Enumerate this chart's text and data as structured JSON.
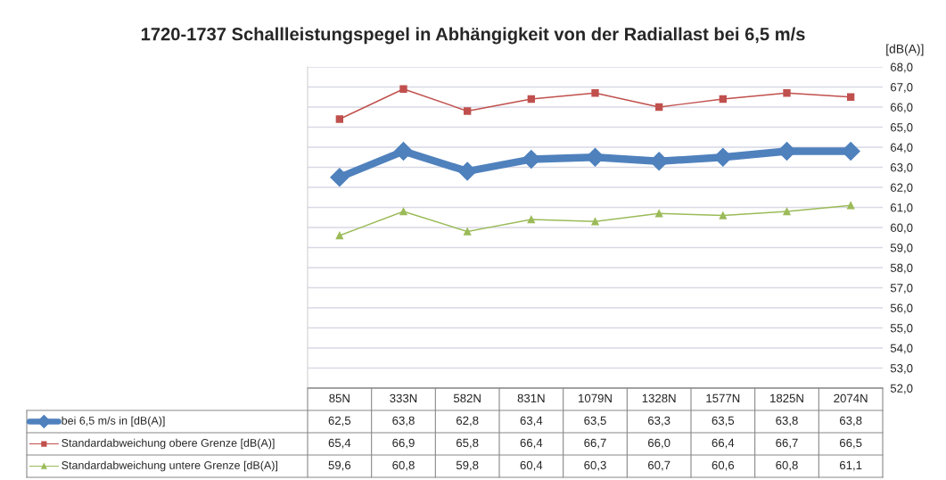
{
  "chart_data": {
    "type": "line",
    "title": "1720-1737 Schallleistungspegel in Abhängigkeit von der Radiallast bei 6,5 m/s",
    "ylabel": "[dB(A)]",
    "categories": [
      "85N",
      "333N",
      "582N",
      "831N",
      "1079N",
      "1328N",
      "1577N",
      "1825N",
      "2074N"
    ],
    "series": [
      {
        "name": "bei 6,5 m/s in [dB(A)]",
        "color": "#4f81bd",
        "marker": "diamond",
        "values": [
          62.5,
          63.8,
          62.8,
          63.4,
          63.5,
          63.3,
          63.5,
          63.8,
          63.8
        ],
        "value_labels": [
          "62,5",
          "63,8",
          "62,8",
          "63,4",
          "63,5",
          "63,3",
          "63,5",
          "63,8",
          "63,8"
        ]
      },
      {
        "name": "Standardabweichung obere Grenze [dB(A)]",
        "color": "#c0504d",
        "marker": "square",
        "values": [
          65.4,
          66.9,
          65.8,
          66.4,
          66.7,
          66.0,
          66.4,
          66.7,
          66.5
        ],
        "value_labels": [
          "65,4",
          "66,9",
          "65,8",
          "66,4",
          "66,7",
          "66,0",
          "66,4",
          "66,7",
          "66,5"
        ]
      },
      {
        "name": "Standardabweichung untere Grenze [dB(A)]",
        "color": "#9bbb59",
        "marker": "triangle",
        "values": [
          59.6,
          60.8,
          59.8,
          60.4,
          60.3,
          60.7,
          60.6,
          60.8,
          61.1
        ],
        "value_labels": [
          "59,6",
          "60,8",
          "59,8",
          "60,4",
          "60,3",
          "60,7",
          "60,6",
          "60,8",
          "61,1"
        ]
      }
    ],
    "ylim": [
      52,
      68
    ],
    "yticks": [
      {
        "value": 52,
        "label": "52,0"
      },
      {
        "value": 53,
        "label": "53,0"
      },
      {
        "value": 54,
        "label": "54,0"
      },
      {
        "value": 55,
        "label": "55,0"
      },
      {
        "value": 56,
        "label": "56,0"
      },
      {
        "value": 57,
        "label": "57,0"
      },
      {
        "value": 58,
        "label": "58,0"
      },
      {
        "value": 59,
        "label": "59,0"
      },
      {
        "value": 60,
        "label": "60,0"
      },
      {
        "value": 61,
        "label": "61,0"
      },
      {
        "value": 62,
        "label": "62,0"
      },
      {
        "value": 63,
        "label": "63,0"
      },
      {
        "value": 64,
        "label": "64,0"
      },
      {
        "value": 65,
        "label": "65,0"
      },
      {
        "value": 66,
        "label": "66,0"
      },
      {
        "value": 67,
        "label": "67,0"
      },
      {
        "value": 68,
        "label": "68,0"
      }
    ],
    "grid": "y",
    "legend": "bottom"
  }
}
